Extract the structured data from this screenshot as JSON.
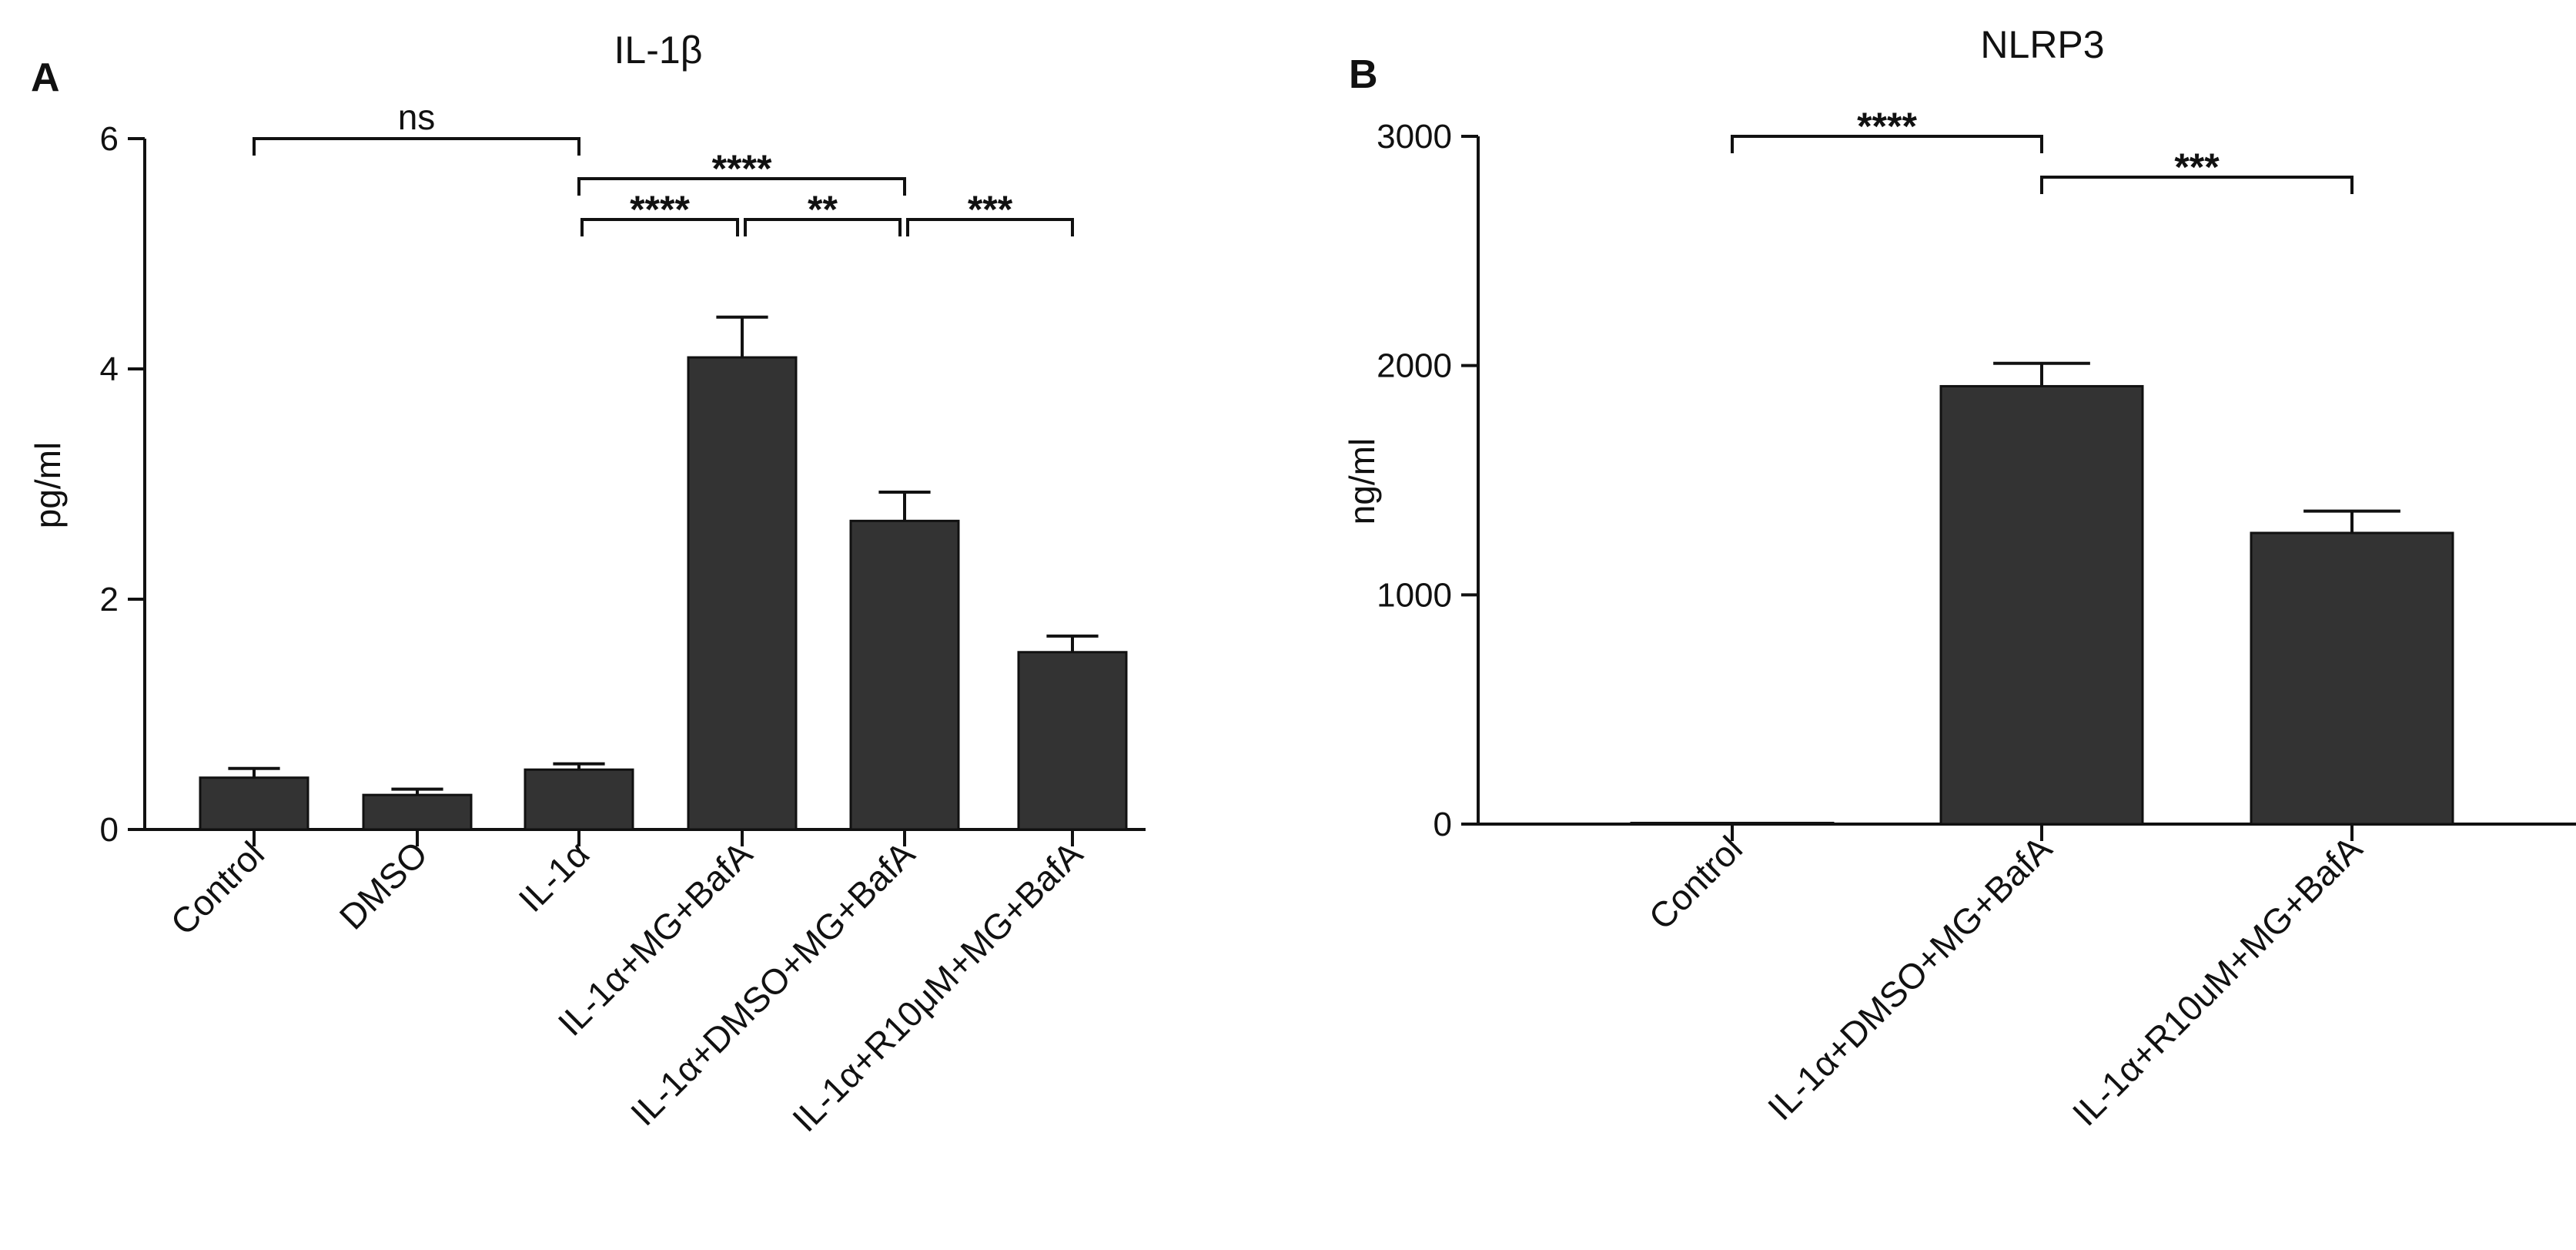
{
  "chart_data": [
    {
      "panel": "A",
      "type": "bar",
      "title": "IL-1β",
      "xlabel": "",
      "ylabel": "pg/ml",
      "ylim": [
        0,
        6
      ],
      "yticks": [
        0,
        2,
        4,
        6
      ],
      "categories": [
        "Control",
        "DMSO",
        "IL-1α",
        "IL-1α+MG+BafA",
        "IL-1α+DMSO+MG+BafA",
        "IL-1α+R10μM+MG+BafA"
      ],
      "values": [
        0.45,
        0.3,
        0.52,
        4.1,
        2.68,
        1.54
      ],
      "errors": [
        0.08,
        0.05,
        0.05,
        0.35,
        0.25,
        0.14
      ],
      "color": "#333333",
      "significance": [
        {
          "from": 0,
          "to": 2,
          "label": "ns",
          "level": 3,
          "y": 6.0
        },
        {
          "from": 2,
          "to": 4,
          "label": "****",
          "level": 2,
          "y": 5.62
        },
        {
          "from": 2,
          "to": 3,
          "label": "****",
          "level": 1,
          "y": 5.25
        },
        {
          "from": 3,
          "to": 4,
          "label": "**",
          "level": 1,
          "y": 5.25
        },
        {
          "from": 4,
          "to": 5,
          "label": "***",
          "level": 1,
          "y": 5.25
        }
      ]
    },
    {
      "panel": "B",
      "type": "bar",
      "title": "NLRP3",
      "xlabel": "",
      "ylabel": "ng/ml",
      "ylim": [
        0,
        3000
      ],
      "yticks": [
        0,
        1000,
        2000,
        3000
      ],
      "categories": [
        "Control",
        "IL-1α+DMSO+MG+BafA",
        "IL-1α+R10uM+MG+BafA"
      ],
      "values": [
        5,
        1910,
        1270
      ],
      "errors": [
        0,
        100,
        95
      ],
      "color": "#333333",
      "significance": [
        {
          "from": 0,
          "to": 1,
          "label": "****",
          "level": 2,
          "y": 3000
        },
        {
          "from": 1,
          "to": 2,
          "label": "***",
          "level": 1,
          "y": 2810
        }
      ]
    }
  ]
}
